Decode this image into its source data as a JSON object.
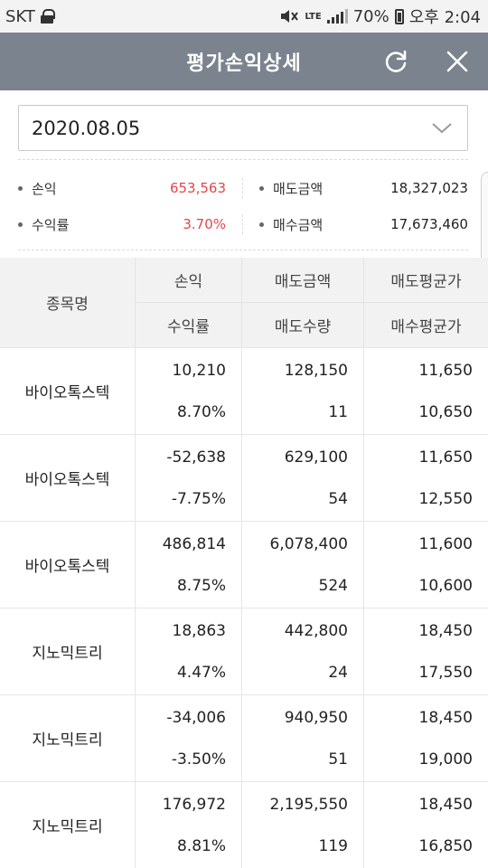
{
  "status_bar": {
    "carrier": "SKT",
    "network": "LTE",
    "battery": "70%",
    "time": "오후 2:04"
  },
  "header": {
    "title": "평가손익상세"
  },
  "date_select": {
    "value": "2020.08.05"
  },
  "summary": {
    "profit_label": "손익",
    "profit_value": "653,563",
    "rate_label": "수익률",
    "rate_value": "3.70%",
    "sell_amount_label": "매도금액",
    "sell_amount_value": "18,327,023",
    "buy_amount_label": "매수금액",
    "buy_amount_value": "17,673,460"
  },
  "table": {
    "headers": {
      "name": "종목명",
      "profit": "손익",
      "rate": "수익률",
      "sell_amount": "매도금액",
      "sell_qty": "매도수량",
      "sell_avg": "매도평균가",
      "buy_avg": "매수평균가"
    },
    "rows": [
      {
        "name": "바이오톡스텍",
        "profit": "10,210",
        "rate": "8.70%",
        "sell_amount": "128,150",
        "sell_qty": "11",
        "sell_avg": "11,650",
        "buy_avg": "10,650",
        "sign": "pos"
      },
      {
        "name": "바이오톡스텍",
        "profit": "-52,638",
        "rate": "-7.75%",
        "sell_amount": "629,100",
        "sell_qty": "54",
        "sell_avg": "11,650",
        "buy_avg": "12,550",
        "sign": "neg"
      },
      {
        "name": "바이오톡스텍",
        "profit": "486,814",
        "rate": "8.75%",
        "sell_amount": "6,078,400",
        "sell_qty": "524",
        "sell_avg": "11,600",
        "buy_avg": "10,600",
        "sign": "pos"
      },
      {
        "name": "지노믹트리",
        "profit": "18,863",
        "rate": "4.47%",
        "sell_amount": "442,800",
        "sell_qty": "24",
        "sell_avg": "18,450",
        "buy_avg": "17,550",
        "sign": "pos"
      },
      {
        "name": "지노믹트리",
        "profit": "-34,006",
        "rate": "-3.50%",
        "sell_amount": "940,950",
        "sell_qty": "51",
        "sell_avg": "18,450",
        "buy_avg": "19,000",
        "sign": "neg"
      },
      {
        "name": "지노믹트리",
        "profit": "176,972",
        "rate": "8.81%",
        "sell_amount": "2,195,550",
        "sell_qty": "119",
        "sell_avg": "18,450",
        "buy_avg": "16,850",
        "sign": "pos"
      }
    ]
  },
  "icons": {
    "refresh": "refresh-icon",
    "close": "close-icon",
    "dropdown": "chevron-down-icon"
  },
  "colors": {
    "header_bg": "#7a838e",
    "positive": "#e0474c",
    "negative": "#3a6fb5"
  }
}
